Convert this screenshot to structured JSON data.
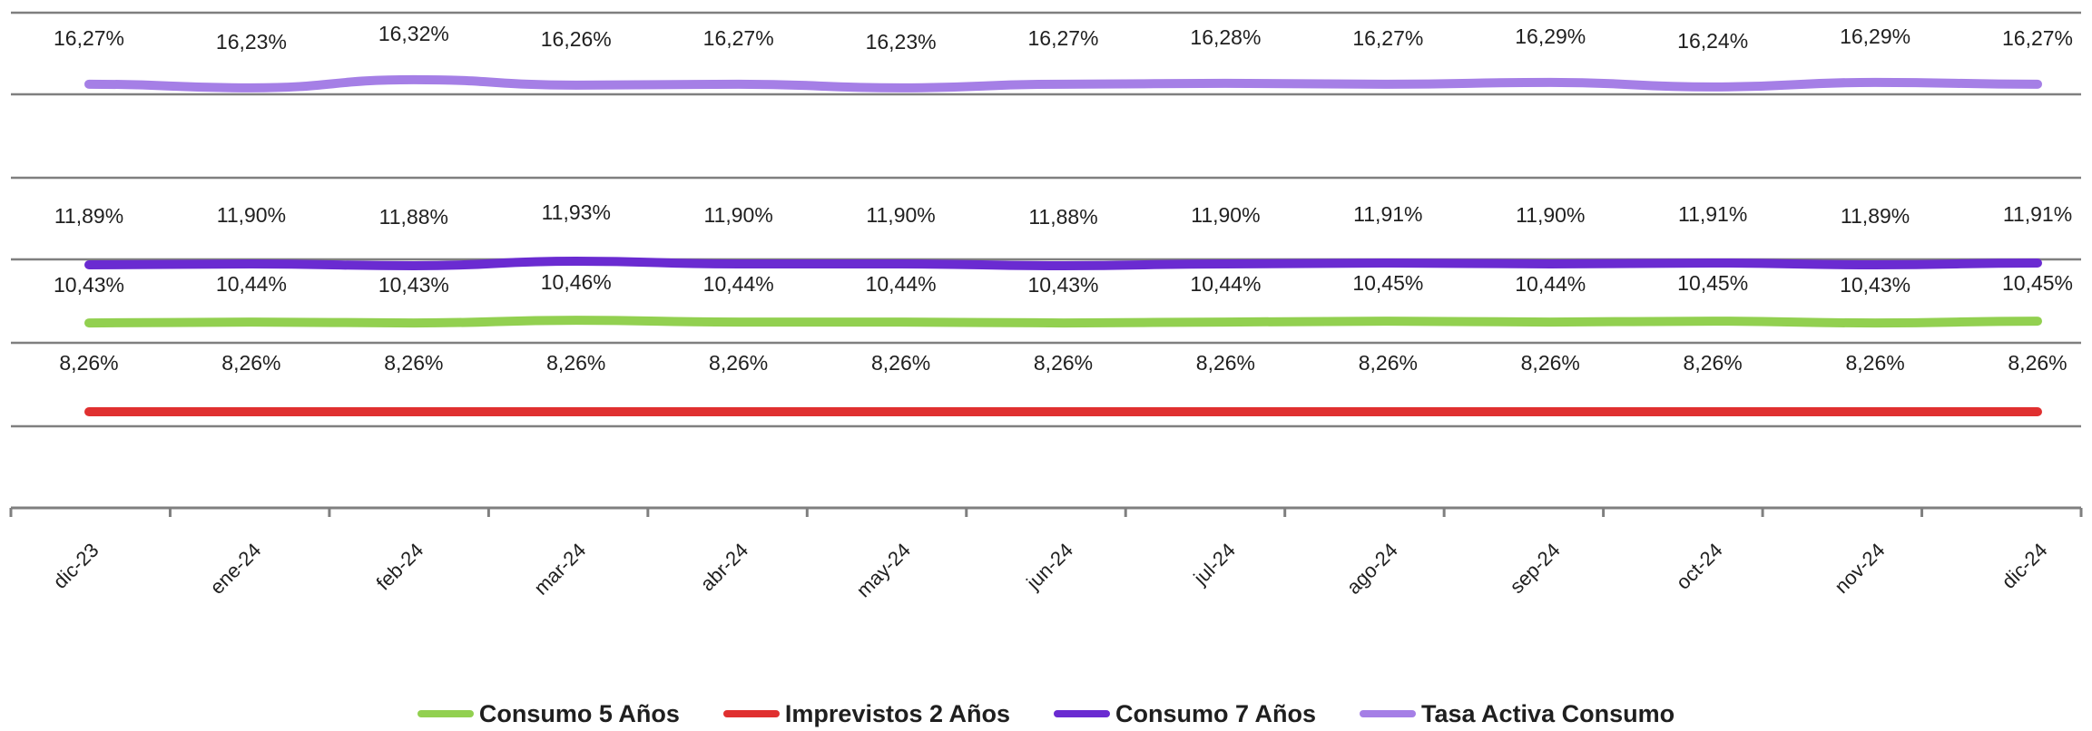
{
  "chart_data": {
    "type": "line",
    "categories": [
      "dic-23",
      "ene-24",
      "feb-24",
      "mar-24",
      "abr-24",
      "may-24",
      "jun-24",
      "jul-24",
      "ago-24",
      "sep-24",
      "oct-24",
      "nov-24",
      "dic-24"
    ],
    "series": [
      {
        "name": "Consumo 5 Años",
        "color": "#92d050",
        "values": [
          10.43,
          10.44,
          10.43,
          10.46,
          10.44,
          10.44,
          10.43,
          10.44,
          10.45,
          10.44,
          10.45,
          10.43,
          10.45
        ],
        "labels": [
          "10,43%",
          "10,44%",
          "10,43%",
          "10,46%",
          "10,44%",
          "10,44%",
          "10,43%",
          "10,44%",
          "10,45%",
          "10,44%",
          "10,45%",
          "10,43%",
          "10,45%"
        ]
      },
      {
        "name": "Imprevistos 2 Años",
        "color": "#e03030",
        "values": [
          8.26,
          8.26,
          8.26,
          8.26,
          8.26,
          8.26,
          8.26,
          8.26,
          8.26,
          8.26,
          8.26,
          8.26,
          8.26
        ],
        "labels": [
          "8,26%",
          "8,26%",
          "8,26%",
          "8,26%",
          "8,26%",
          "8,26%",
          "8,26%",
          "8,26%",
          "8,26%",
          "8,26%",
          "8,26%",
          "8,26%",
          "8,26%"
        ]
      },
      {
        "name": "Consumo 7 Años",
        "color": "#6a2bd1",
        "values": [
          11.89,
          11.9,
          11.88,
          11.93,
          11.9,
          11.9,
          11.88,
          11.9,
          11.91,
          11.9,
          11.91,
          11.89,
          11.91
        ],
        "labels": [
          "11,89%",
          "11,90%",
          "11,88%",
          "11,93%",
          "11,90%",
          "11,90%",
          "11,88%",
          "11,90%",
          "11,91%",
          "11,90%",
          "11,91%",
          "11,89%",
          "11,91%"
        ]
      },
      {
        "name": "Tasa Activa Consumo",
        "color": "#a57fe6",
        "values": [
          16.27,
          16.23,
          16.32,
          16.26,
          16.27,
          16.23,
          16.27,
          16.28,
          16.27,
          16.29,
          16.24,
          16.29,
          16.27
        ],
        "labels": [
          "16,27%",
          "16,23%",
          "16,32%",
          "16,26%",
          "16,27%",
          "16,23%",
          "16,27%",
          "16,28%",
          "16,27%",
          "16,29%",
          "16,24%",
          "16,29%",
          "16,27%"
        ]
      }
    ],
    "ylim": [
      6,
      18
    ],
    "grid": true,
    "legend_position": "bottom"
  }
}
